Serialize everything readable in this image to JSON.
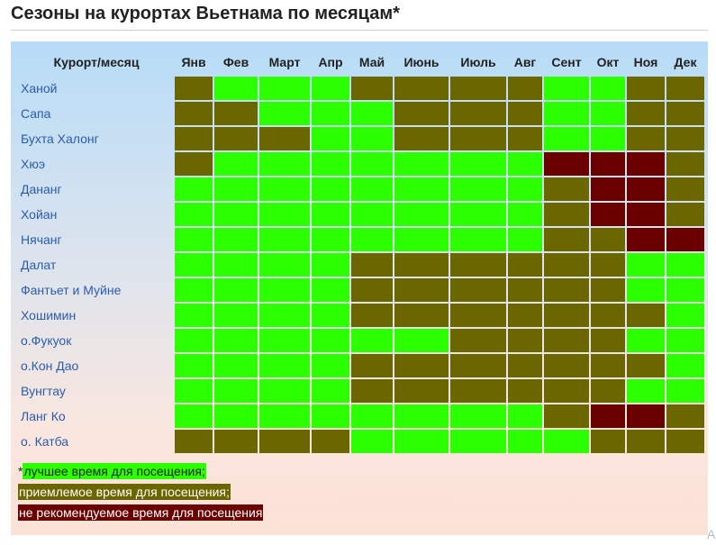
{
  "page": {
    "title": "Сезоны на курортах Вьетнама по месяцам*",
    "corner_mark": "А"
  },
  "chart_data": {
    "type": "table",
    "corner_header": "Курорт/месяц",
    "months": [
      "Янв",
      "Фев",
      "Март",
      "Апр",
      "Май",
      "Июнь",
      "Июль",
      "Авг",
      "Сент",
      "Окт",
      "Ноя",
      "Дек"
    ],
    "season_colors": {
      "best": "#2bff00",
      "ok": "#6b6600",
      "bad": "#6b0000"
    },
    "resorts": [
      {
        "name": "Ханой",
        "seasons": [
          "ok",
          "best",
          "best",
          "best",
          "ok",
          "ok",
          "ok",
          "ok",
          "best",
          "best",
          "ok",
          "ok"
        ]
      },
      {
        "name": "Сапа",
        "seasons": [
          "ok",
          "ok",
          "best",
          "best",
          "best",
          "ok",
          "ok",
          "ok",
          "best",
          "best",
          "ok",
          "ok"
        ]
      },
      {
        "name": "Бухта Халонг",
        "seasons": [
          "ok",
          "ok",
          "ok",
          "best",
          "best",
          "ok",
          "ok",
          "ok",
          "best",
          "best",
          "ok",
          "ok"
        ]
      },
      {
        "name": "Хюэ",
        "seasons": [
          "ok",
          "best",
          "best",
          "best",
          "best",
          "best",
          "best",
          "best",
          "bad",
          "bad",
          "bad",
          "ok"
        ]
      },
      {
        "name": "Дананг",
        "seasons": [
          "best",
          "best",
          "best",
          "best",
          "best",
          "best",
          "best",
          "best",
          "ok",
          "bad",
          "bad",
          "ok"
        ]
      },
      {
        "name": "Хойан",
        "seasons": [
          "best",
          "best",
          "best",
          "best",
          "best",
          "best",
          "best",
          "best",
          "ok",
          "bad",
          "bad",
          "ok"
        ]
      },
      {
        "name": "Нячанг",
        "seasons": [
          "best",
          "best",
          "best",
          "best",
          "best",
          "best",
          "best",
          "best",
          "ok",
          "ok",
          "bad",
          "bad"
        ]
      },
      {
        "name": "Далат",
        "seasons": [
          "best",
          "best",
          "best",
          "best",
          "ok",
          "ok",
          "ok",
          "ok",
          "ok",
          "ok",
          "best",
          "best"
        ]
      },
      {
        "name": "Фантьет и Муйне",
        "seasons": [
          "best",
          "best",
          "best",
          "best",
          "ok",
          "ok",
          "ok",
          "ok",
          "ok",
          "ok",
          "best",
          "best"
        ]
      },
      {
        "name": "Хошимин",
        "seasons": [
          "best",
          "best",
          "best",
          "best",
          "ok",
          "ok",
          "ok",
          "ok",
          "ok",
          "ok",
          "ok",
          "best"
        ]
      },
      {
        "name": "о.Фукуок",
        "seasons": [
          "best",
          "best",
          "best",
          "best",
          "best",
          "best",
          "ok",
          "ok",
          "ok",
          "ok",
          "best",
          "best"
        ]
      },
      {
        "name": "о.Кон Дао",
        "seasons": [
          "best",
          "best",
          "best",
          "best",
          "ok",
          "ok",
          "ok",
          "ok",
          "ok",
          "ok",
          "ok",
          "best"
        ]
      },
      {
        "name": "Вунгтау",
        "seasons": [
          "best",
          "best",
          "best",
          "best",
          "ok",
          "ok",
          "ok",
          "ok",
          "ok",
          "ok",
          "best",
          "best"
        ]
      },
      {
        "name": "Ланг Ко",
        "seasons": [
          "best",
          "best",
          "best",
          "best",
          "best",
          "best",
          "best",
          "best",
          "ok",
          "bad",
          "bad",
          "ok"
        ]
      },
      {
        "name": "о. Катба",
        "seasons": [
          "ok",
          "ok",
          "ok",
          "ok",
          "best",
          "best",
          "best",
          "best",
          "best",
          "ok",
          "ok",
          "ok"
        ]
      }
    ]
  },
  "legend": {
    "prefix": "*",
    "best_label": "лучшее время для посещения;",
    "ok_label": "приемлемое время для посещения;",
    "bad_label": "не рекомендуемое время для посещения"
  }
}
